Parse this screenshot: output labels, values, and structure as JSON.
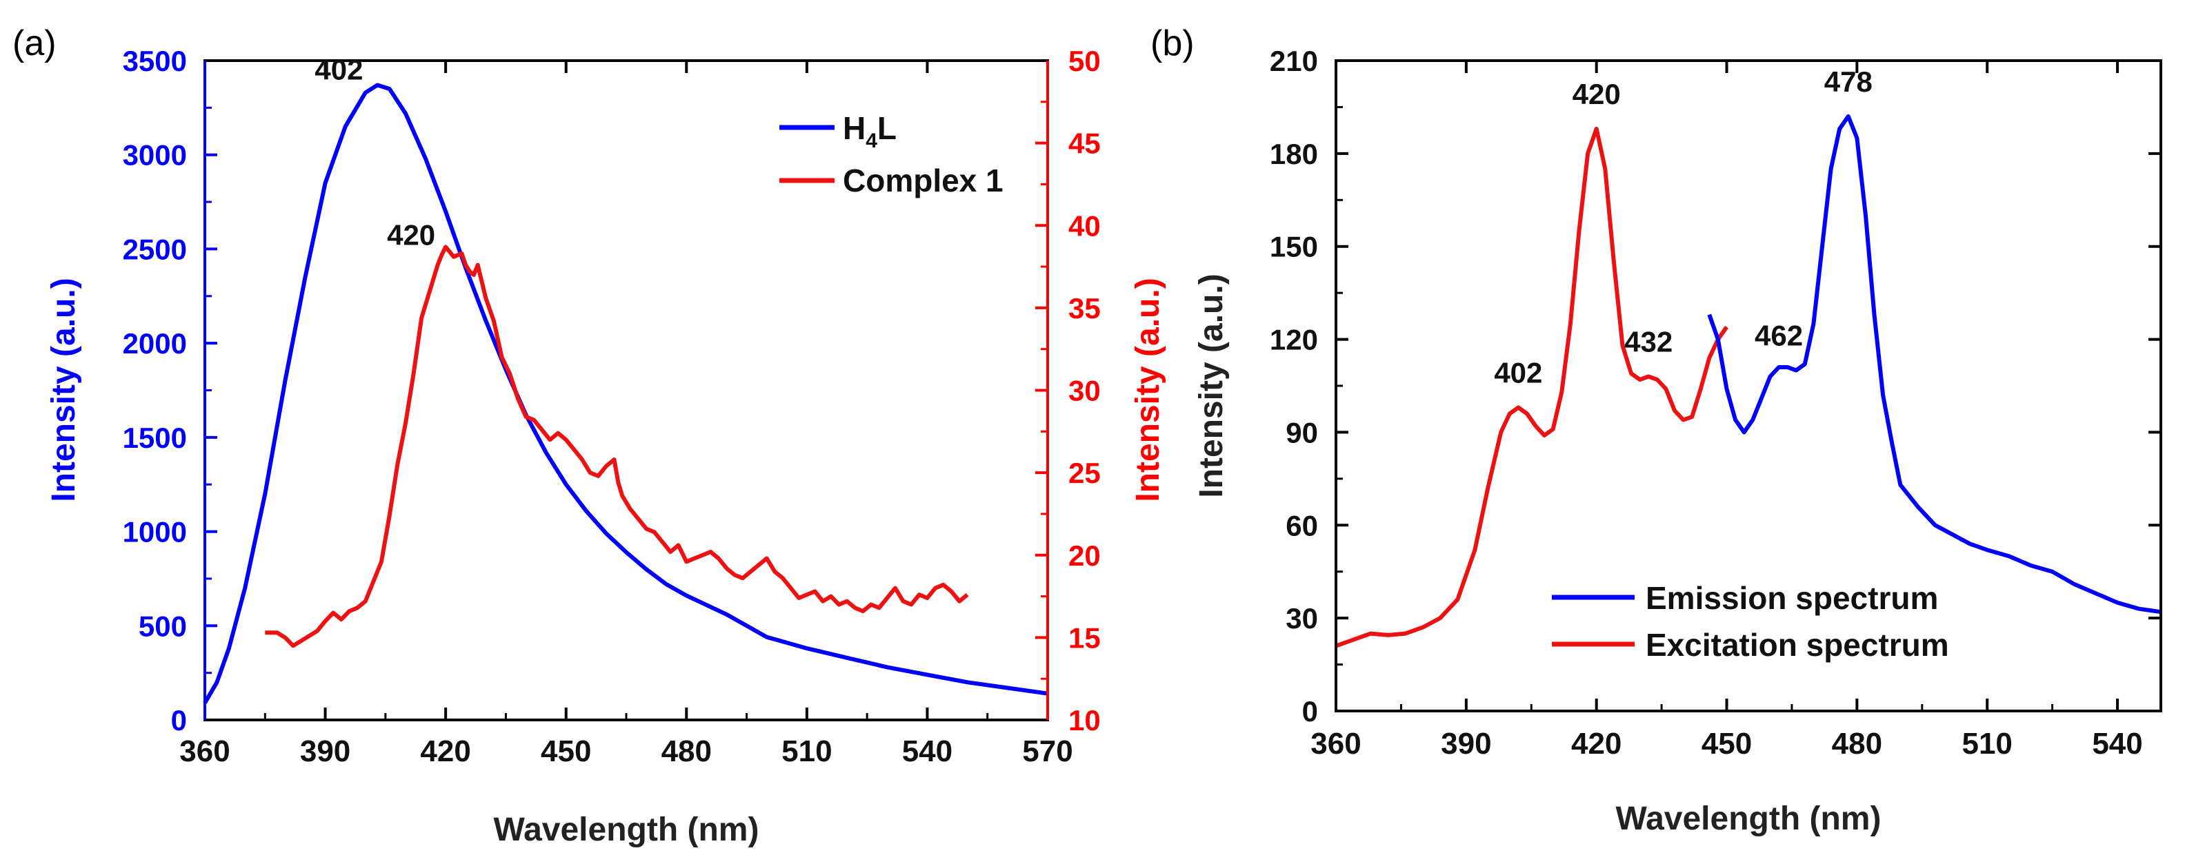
{
  "chart_data": [
    {
      "panel_label": "(a)",
      "type": "line",
      "title": "",
      "xlabel": "Wavelength (nm)",
      "x_ticks": [
        360,
        390,
        420,
        450,
        480,
        510,
        540,
        570
      ],
      "xlim": [
        360,
        570
      ],
      "left_axis": {
        "ylabel": "Intensity (a.u.)",
        "ylim": [
          0,
          3500
        ],
        "ticks": [
          0,
          500,
          1000,
          1500,
          2000,
          2500,
          3000,
          3500
        ],
        "color": "#0000ff"
      },
      "right_axis": {
        "ylabel": "Intensity (a.u.)",
        "ylim": [
          10,
          50
        ],
        "ticks": [
          10,
          15,
          20,
          25,
          30,
          35,
          40,
          45,
          50
        ],
        "color": "#ff0000"
      },
      "legend": {
        "position": "top-right",
        "entries": [
          {
            "label_main": "H",
            "label_sub": "4",
            "label_tail": "L",
            "color": "#0000ff"
          },
          {
            "label_main": "Complex 1",
            "label_sub": "",
            "label_tail": "",
            "color": "#ee1111"
          }
        ]
      },
      "annotations": [
        {
          "text": "402",
          "x": 402,
          "y": 3450,
          "axis": "left"
        },
        {
          "text": "420",
          "x": 420,
          "y": 39.4,
          "axis": "right"
        }
      ],
      "series": [
        {
          "name": "H4L",
          "axis": "left",
          "color": "#0000ff",
          "x": [
            360,
            363,
            366,
            370,
            375,
            380,
            385,
            390,
            395,
            400,
            403,
            406,
            410,
            415,
            420,
            425,
            430,
            435,
            440,
            445,
            450,
            455,
            460,
            465,
            470,
            475,
            480,
            485,
            490,
            495,
            500,
            505,
            510,
            520,
            530,
            540,
            550,
            560,
            570
          ],
          "values": [
            90,
            200,
            380,
            700,
            1200,
            1800,
            2350,
            2850,
            3150,
            3330,
            3370,
            3350,
            3220,
            2980,
            2700,
            2400,
            2120,
            1860,
            1620,
            1420,
            1250,
            1110,
            990,
            890,
            800,
            720,
            660,
            610,
            560,
            500,
            440,
            410,
            380,
            330,
            280,
            240,
            200,
            170,
            140
          ]
        },
        {
          "name": "Complex 1",
          "axis": "right",
          "color": "#ee1111",
          "x": [
            375,
            378,
            380,
            382,
            384,
            386,
            388,
            390,
            392,
            394,
            396,
            398,
            400,
            402,
            404,
            406,
            408,
            410,
            412,
            414,
            416,
            418,
            419,
            420,
            421,
            422,
            424,
            425,
            426,
            427,
            428,
            430,
            432,
            434,
            436,
            438,
            440,
            442,
            444,
            446,
            448,
            450,
            452,
            454,
            456,
            458,
            460,
            462,
            463,
            464,
            466,
            468,
            470,
            472,
            474,
            476,
            478,
            480,
            482,
            484,
            486,
            488,
            490,
            492,
            494,
            496,
            498,
            500,
            502,
            504,
            506,
            508,
            510,
            512,
            514,
            516,
            518,
            520,
            522,
            524,
            526,
            528,
            530,
            532,
            534,
            536,
            538,
            540,
            542,
            544,
            546,
            548,
            550
          ],
          "values": [
            15.3,
            15.3,
            15.0,
            14.5,
            14.8,
            15.1,
            15.4,
            16.0,
            16.5,
            16.1,
            16.6,
            16.8,
            17.2,
            18.4,
            19.6,
            22.4,
            25.5,
            28.0,
            31.0,
            34.4,
            36.0,
            37.6,
            38.2,
            38.7,
            38.4,
            38.1,
            38.3,
            37.6,
            37.2,
            37.0,
            37.6,
            35.6,
            34.2,
            32.0,
            31.0,
            29.5,
            28.4,
            28.2,
            27.6,
            27.0,
            27.4,
            27.0,
            26.4,
            25.8,
            25.0,
            24.8,
            25.4,
            25.8,
            24.4,
            23.6,
            22.8,
            22.2,
            21.6,
            21.4,
            20.8,
            20.2,
            20.6,
            19.6,
            19.8,
            20.0,
            20.2,
            19.8,
            19.2,
            18.8,
            18.6,
            19.0,
            19.4,
            19.8,
            19.0,
            18.6,
            18.0,
            17.4,
            17.6,
            17.8,
            17.2,
            17.5,
            17.0,
            17.2,
            16.8,
            16.6,
            17.0,
            16.8,
            17.4,
            18.0,
            17.2,
            17.0,
            17.6,
            17.4,
            18.0,
            18.2,
            17.8,
            17.2,
            17.6
          ]
        }
      ]
    },
    {
      "panel_label": "(b)",
      "type": "line",
      "title": "",
      "xlabel": "Wavelength (nm)",
      "ylabel": "Intensity (a.u.)",
      "xlim": [
        360,
        550
      ],
      "x_ticks": [
        360,
        390,
        420,
        450,
        480,
        510,
        540
      ],
      "ylim": [
        0,
        210
      ],
      "y_ticks": [
        0,
        30,
        60,
        90,
        120,
        150,
        180,
        210
      ],
      "legend": {
        "position": "bottom-center",
        "entries": [
          {
            "label": "Emission spectrum",
            "color": "#0000ff"
          },
          {
            "label": "Excitation spectrum",
            "color": "#ee1111"
          }
        ]
      },
      "annotations": [
        {
          "text": "402",
          "x": 402,
          "y": 106
        },
        {
          "text": "420",
          "x": 420,
          "y": 196
        },
        {
          "text": "432",
          "x": 432,
          "y": 116
        },
        {
          "text": "462",
          "x": 462,
          "y": 118
        },
        {
          "text": "478",
          "x": 478,
          "y": 200
        }
      ],
      "series": [
        {
          "name": "Excitation spectrum",
          "color": "#ee1111",
          "x": [
            360,
            364,
            368,
            372,
            376,
            380,
            384,
            388,
            392,
            395,
            398,
            400,
            402,
            404,
            406,
            408,
            410,
            412,
            414,
            416,
            418,
            420,
            422,
            424,
            426,
            428,
            430,
            432,
            434,
            436,
            438,
            440,
            442,
            444,
            446,
            448,
            450
          ],
          "values": [
            21,
            23,
            25,
            24.5,
            25,
            27,
            30,
            36,
            52,
            72,
            90,
            96,
            98,
            96,
            92,
            89,
            91,
            103,
            125,
            155,
            180,
            188,
            175,
            145,
            118,
            109,
            107,
            108,
            107,
            104,
            97,
            94,
            95,
            104,
            114,
            120,
            124
          ]
        },
        {
          "name": "Emission spectrum",
          "color": "#0000ff",
          "x": [
            446,
            448,
            450,
            452,
            454,
            456,
            458,
            460,
            462,
            464,
            466,
            468,
            470,
            472,
            474,
            476,
            478,
            480,
            482,
            484,
            486,
            488,
            490,
            494,
            498,
            502,
            506,
            510,
            515,
            520,
            525,
            530,
            535,
            540,
            545,
            550
          ],
          "values": [
            128,
            120,
            104,
            94,
            90,
            94,
            101,
            108,
            111,
            111,
            110,
            112,
            125,
            150,
            175,
            188,
            192,
            185,
            160,
            128,
            102,
            87,
            73,
            66,
            60,
            57,
            54,
            52,
            50,
            47,
            45,
            41,
            38,
            35,
            33,
            32
          ]
        }
      ]
    }
  ]
}
